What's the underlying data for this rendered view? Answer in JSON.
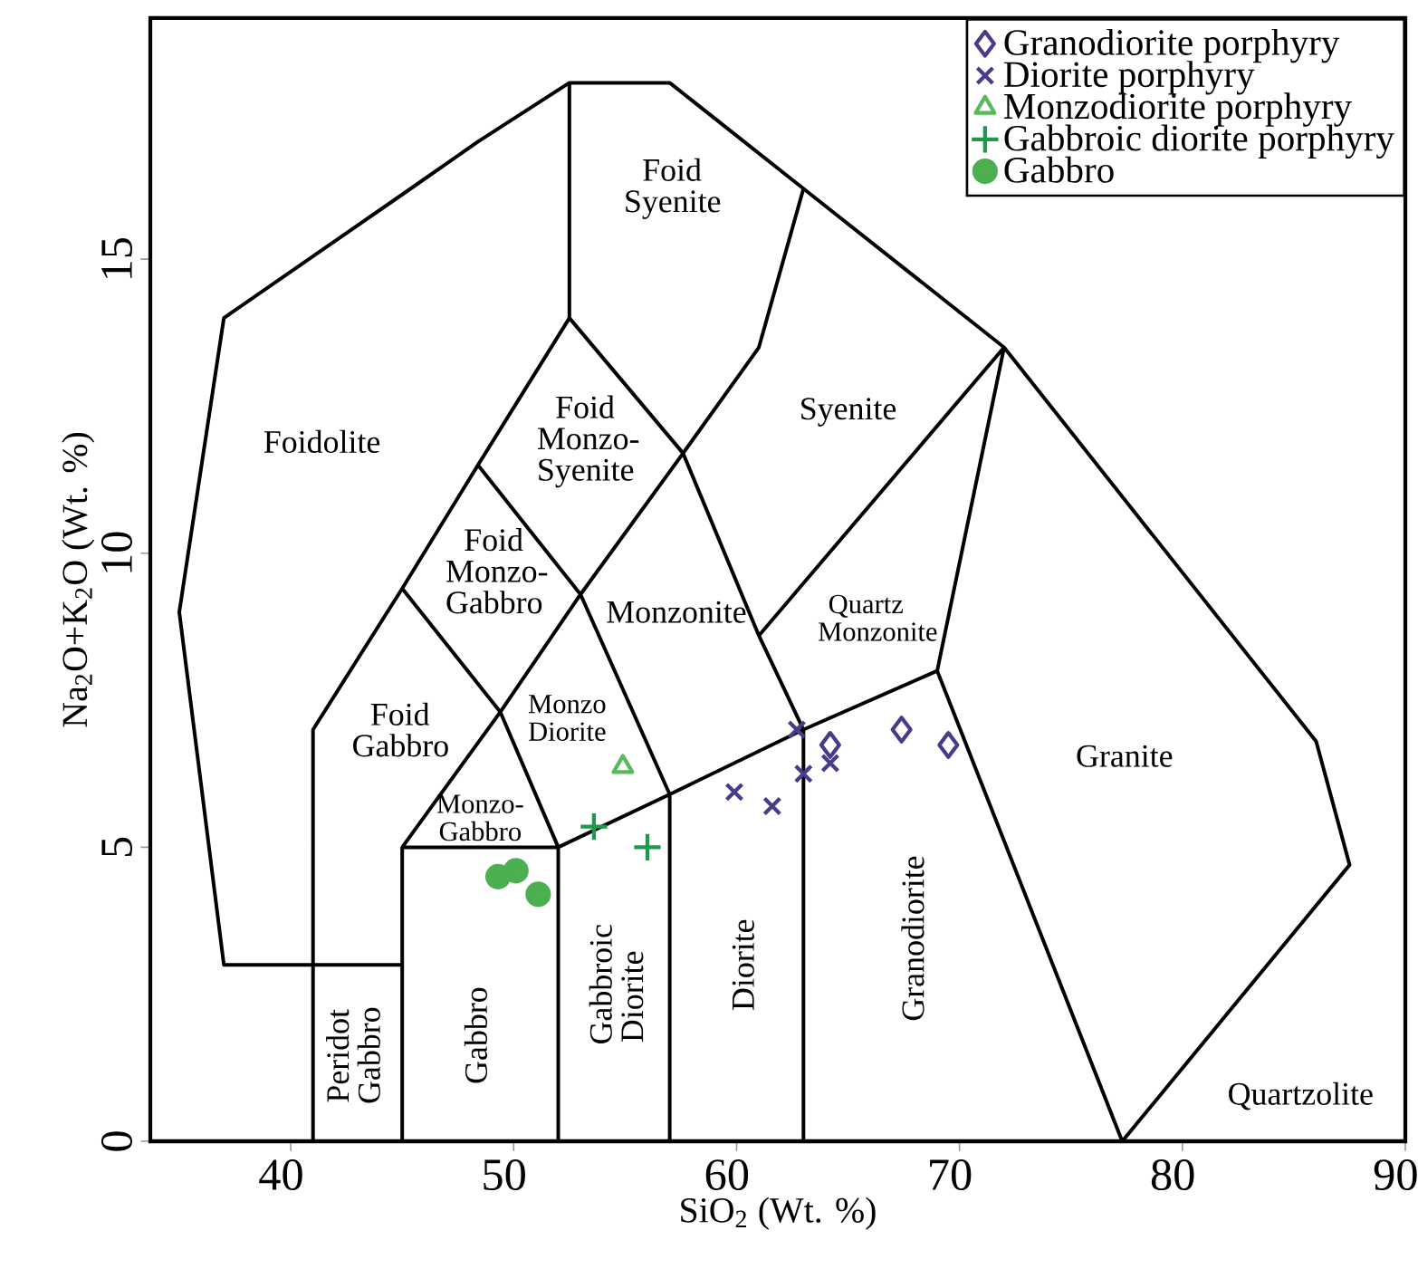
{
  "chart_data": {
    "type": "scatter",
    "xlabel": "SiO$_{2}$ (Wt. %)",
    "ylabel": "Na$_{2}$O+K$_{2}$O (Wt. %)",
    "xlim": [
      33.7,
      90
    ],
    "ylim": [
      0,
      19.1
    ],
    "xticks": [
      40,
      50,
      60,
      70,
      80,
      90
    ],
    "yticks": [
      0,
      5,
      10,
      15
    ],
    "grid": false,
    "legend": "top right",
    "series": [
      {
        "type": "line",
        "color": "#000000",
        "x": [
          45,
          37,
          35,
          37,
          45,
          48.4,
          52.5,
          57,
          63,
          72,
          86,
          87.5,
          77.3,
          null,
          41,
          41,
          45,
          48.4,
          52.5,
          57.6,
          61,
          63,
          null,
          52.5,
          52.5,
          null,
          63,
          61,
          57.6,
          53,
          49.4,
          45,
          null,
          48.4,
          53,
          57,
          null,
          45,
          49.4,
          52,
          null,
          45,
          45,
          52,
          52,
          null,
          52,
          57,
          63,
          69,
          null,
          57,
          57,
          null,
          63,
          63,
          null,
          61,
          72,
          69,
          77.3
        ],
        "values": [
          3,
          3,
          9,
          14,
          16.1,
          17.0,
          18,
          18,
          16.2,
          13.5,
          6.8,
          4.7,
          0,
          null,
          0,
          7,
          9.4,
          11.5,
          14,
          11.7,
          8.6,
          7,
          null,
          14,
          18,
          null,
          16.2,
          13.5,
          11.7,
          9.3,
          7.3,
          5,
          null,
          11.5,
          9.3,
          5.9,
          null,
          9.4,
          7.3,
          5,
          null,
          0,
          5,
          5,
          0,
          null,
          5,
          5.9,
          7,
          8,
          null,
          0,
          5.9,
          null,
          0,
          7,
          null,
          8.6,
          13.5,
          8,
          0
        ]
      },
      {
        "name": "Granodiorite porphyry",
        "marker": "diamond",
        "color": "#4a3a8a",
        "x": [
          64.2,
          67.4,
          69.5
        ],
        "values": [
          6.74,
          7.0,
          6.74
        ]
      },
      {
        "name": "Diorite porphyry",
        "marker": "cross",
        "color": "#4a3a8a",
        "x": [
          59.9,
          61.6,
          63.0,
          62.7,
          64.2
        ],
        "values": [
          5.94,
          5.7,
          6.25,
          7.0,
          6.43
        ]
      },
      {
        "name": "Monzodiorite porphyry",
        "marker": "triangle",
        "color": "#5cb85c",
        "x": [
          54.9
        ],
        "values": [
          6.37
        ]
      },
      {
        "name": "Gabbroic diorite porphyry",
        "marker": "plus",
        "color": "#1a9a4a",
        "x": [
          53.6,
          56.0
        ],
        "values": [
          5.35,
          5.0
        ]
      },
      {
        "name": "Gabbro",
        "marker": "circle",
        "color": "#4caf50",
        "x": [
          49.3,
          50.1,
          51.1
        ],
        "values": [
          4.5,
          4.6,
          4.2
        ]
      }
    ],
    "annotations": [
      "Foidolite",
      "Foid Syenite",
      "Foid Monzo-Syenite",
      "Syenite",
      "Foid Monzo-Gabbro",
      "Monzonite",
      "Quartz Monzonite",
      "Foid Gabbro",
      "Monzo Diorite",
      "Monzo-Gabbro",
      "Peridot Gabbro",
      "Gabbro",
      "Gabbroic Diorite",
      "Diorite",
      "Granodiorite",
      "Granite",
      "Quartzolite"
    ]
  }
}
